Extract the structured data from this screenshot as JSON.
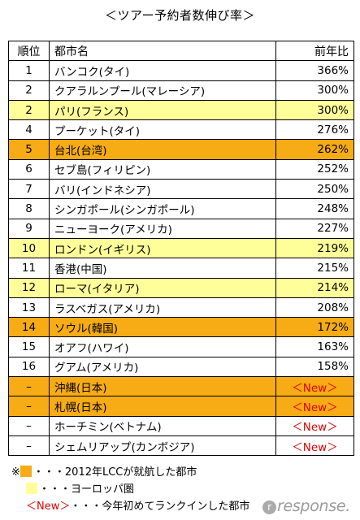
{
  "title": "＜ツアー予約者数伸び率＞",
  "table": {
    "headers": [
      "順位",
      "都市名",
      "前年比"
    ],
    "rows": [
      {
        "rank": "1",
        "city": "バンコク(タイ)",
        "ratio": "366%",
        "highlight": "none"
      },
      {
        "rank": "2",
        "city": "クアラルンプール(マレーシア)",
        "ratio": "300%",
        "highlight": "none"
      },
      {
        "rank": "2",
        "city": "パリ(フランス)",
        "ratio": "300%",
        "highlight": "europe"
      },
      {
        "rank": "4",
        "city": "プーケット(タイ)",
        "ratio": "276%",
        "highlight": "none"
      },
      {
        "rank": "5",
        "city": "台北(台湾)",
        "ratio": "262%",
        "highlight": "lcc"
      },
      {
        "rank": "6",
        "city": "セブ島(フィリピン)",
        "ratio": "252%",
        "highlight": "none"
      },
      {
        "rank": "7",
        "city": "バリ(インドネシア)",
        "ratio": "250%",
        "highlight": "none"
      },
      {
        "rank": "8",
        "city": "シンガポール(シンガポール)",
        "ratio": "248%",
        "highlight": "none"
      },
      {
        "rank": "9",
        "city": "ニューヨーク(アメリカ)",
        "ratio": "227%",
        "highlight": "none"
      },
      {
        "rank": "10",
        "city": "ロンドン(イギリス)",
        "ratio": "219%",
        "highlight": "europe"
      },
      {
        "rank": "11",
        "city": "香港(中国)",
        "ratio": "215%",
        "highlight": "none"
      },
      {
        "rank": "12",
        "city": "ローマ(イタリア)",
        "ratio": "214%",
        "highlight": "europe"
      },
      {
        "rank": "13",
        "city": "ラスベガス(アメリカ)",
        "ratio": "208%",
        "highlight": "none"
      },
      {
        "rank": "14",
        "city": "ソウル(韓国)",
        "ratio": "172%",
        "highlight": "lcc"
      },
      {
        "rank": "15",
        "city": "オアフ(ハワイ)",
        "ratio": "163%",
        "highlight": "none"
      },
      {
        "rank": "16",
        "city": "グアム(アメリカ)",
        "ratio": "158%",
        "highlight": "none"
      },
      {
        "rank": "–",
        "city": "沖縄(日本)",
        "ratio": "＜New＞",
        "highlight": "lcc"
      },
      {
        "rank": "–",
        "city": "札幌(日本)",
        "ratio": "＜New＞",
        "highlight": "lcc"
      },
      {
        "rank": "–",
        "city": "ホーチミン(ベトナム)",
        "ratio": "＜New＞",
        "highlight": "none"
      },
      {
        "rank": "–",
        "city": "シェムリアップ(カンボジア)",
        "ratio": "＜New＞",
        "highlight": "none"
      }
    ]
  },
  "legend": {
    "marker": "※",
    "lcc_text": "・・・2012年LCCが就航した都市",
    "europe_text": "・・・ヨーロッパ圏",
    "new_tag": "＜New＞",
    "new_text": "・・・今年初めてランクインした都市"
  },
  "watermark": "response.",
  "colors": {
    "lcc": "#f7ab14",
    "europe": "#ffff99",
    "new": "#e00000",
    "border": "#000000"
  }
}
